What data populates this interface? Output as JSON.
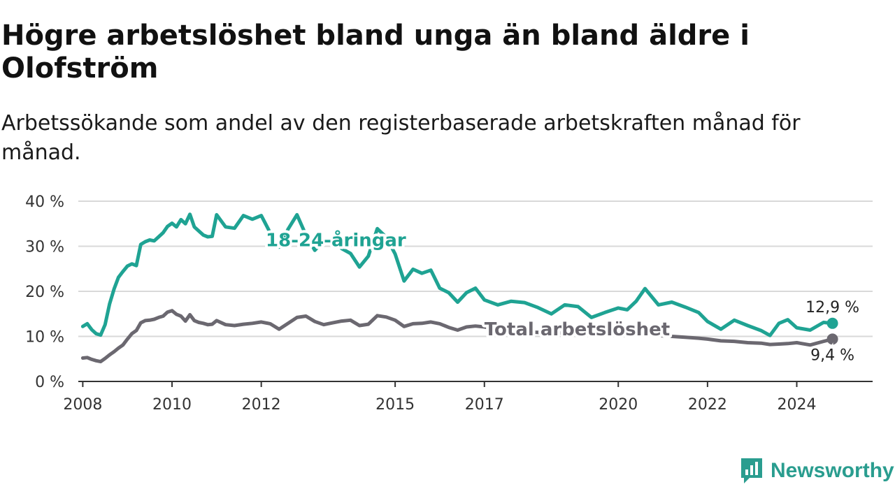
{
  "title": "Högre arbetslöshet bland unga än bland äldre i Olofström",
  "subtitle": "Arbetssökande som andel av den registerbaserade arbetskraften månad för månad.",
  "brand": "Newsworthy",
  "colors": {
    "young": "#1fa393",
    "total": "#6b6870",
    "grid": "#d9d9d9",
    "axis": "#333333"
  },
  "icons": {
    "logo": "newsworthy-logo-icon"
  },
  "chart_data": {
    "type": "line",
    "y_tick_labels": [
      "0 %",
      "10 %",
      "20 %",
      "30 %",
      "40 %"
    ],
    "x_tick_labels": [
      "2008",
      "2010",
      "2012",
      "2015",
      "2017",
      "2020",
      "2022",
      "2024"
    ],
    "x_ticks": [
      2008,
      2010,
      2012,
      2015,
      2017,
      2020,
      2022,
      2024
    ],
    "xlim": [
      2007.9,
      2025.7
    ],
    "ylim": [
      0,
      40
    ],
    "grid": true,
    "series": [
      {
        "name": "18-24-åringar",
        "color": "#1fa393",
        "end_label": "12,9 %",
        "x": [
          2008.0,
          2008.1,
          2008.2,
          2008.3,
          2008.4,
          2008.5,
          2008.6,
          2008.7,
          2008.8,
          2008.9,
          2009.0,
          2009.1,
          2009.2,
          2009.3,
          2009.4,
          2009.5,
          2009.6,
          2009.7,
          2009.8,
          2009.9,
          2010.0,
          2010.1,
          2010.2,
          2010.3,
          2010.4,
          2010.5,
          2010.6,
          2010.7,
          2010.8,
          2010.9,
          2011.0,
          2011.2,
          2011.4,
          2011.6,
          2011.8,
          2012.0,
          2012.2,
          2012.4,
          2012.6,
          2012.8,
          2013.0,
          2013.2,
          2013.4,
          2013.6,
          2013.8,
          2014.0,
          2014.2,
          2014.4,
          2014.6,
          2014.8,
          2015.0,
          2015.2,
          2015.4,
          2015.6,
          2015.8,
          2016.0,
          2016.2,
          2016.4,
          2016.6,
          2016.8,
          2017.0,
          2017.3,
          2017.6,
          2017.9,
          2018.2,
          2018.5,
          2018.8,
          2019.1,
          2019.4,
          2019.7,
          2020.0,
          2020.2,
          2020.4,
          2020.6,
          2020.9,
          2021.2,
          2021.5,
          2021.8,
          2022.0,
          2022.3,
          2022.6,
          2022.9,
          2023.2,
          2023.4,
          2023.6,
          2023.8,
          2024.0,
          2024.3,
          2024.6,
          2024.8
        ],
        "values": [
          12.2,
          12.8,
          11.5,
          10.6,
          10.3,
          12.6,
          17.2,
          20.5,
          23.1,
          24.4,
          25.6,
          26.1,
          25.7,
          30.4,
          31.0,
          31.4,
          31.2,
          32.1,
          33.0,
          34.4,
          35.1,
          34.3,
          35.9,
          35.0,
          37.1,
          34.3,
          33.4,
          32.5,
          32.1,
          32.2,
          37.0,
          34.3,
          34.0,
          36.8,
          36.0,
          36.8,
          33.0,
          29.8,
          33.8,
          37.0,
          32.5,
          29.1,
          31.2,
          31.6,
          29.5,
          28.4,
          25.4,
          27.8,
          33.9,
          32.0,
          28.3,
          22.3,
          24.9,
          24.0,
          24.7,
          20.7,
          19.7,
          17.6,
          19.7,
          20.7,
          18.1,
          17.0,
          17.8,
          17.5,
          16.4,
          15.0,
          17.0,
          16.6,
          14.2,
          15.3,
          16.3,
          15.9,
          17.8,
          20.6,
          17.0,
          17.6,
          16.5,
          15.3,
          13.3,
          11.6,
          13.6,
          12.4,
          11.3,
          10.2,
          12.9,
          13.7,
          11.9,
          11.4,
          13.1,
          12.9
        ]
      },
      {
        "name": "Total arbetslöshet",
        "color": "#6b6870",
        "end_label": "9,4 %",
        "x": [
          2008.0,
          2008.1,
          2008.2,
          2008.3,
          2008.4,
          2008.5,
          2008.6,
          2008.7,
          2008.8,
          2008.9,
          2009.0,
          2009.1,
          2009.2,
          2009.3,
          2009.4,
          2009.5,
          2009.6,
          2009.7,
          2009.8,
          2009.9,
          2010.0,
          2010.1,
          2010.2,
          2010.3,
          2010.4,
          2010.5,
          2010.6,
          2010.7,
          2010.8,
          2010.9,
          2011.0,
          2011.2,
          2011.4,
          2011.6,
          2011.8,
          2012.0,
          2012.2,
          2012.4,
          2012.6,
          2012.8,
          2013.0,
          2013.2,
          2013.4,
          2013.6,
          2013.8,
          2014.0,
          2014.2,
          2014.4,
          2014.6,
          2014.8,
          2015.0,
          2015.2,
          2015.4,
          2015.6,
          2015.8,
          2016.0,
          2016.2,
          2016.4,
          2016.6,
          2016.8,
          2017.0,
          2017.3,
          2017.6,
          2017.9,
          2018.2,
          2018.5,
          2018.8,
          2019.1,
          2019.4,
          2019.7,
          2020.0,
          2020.2,
          2020.4,
          2020.6,
          2020.9,
          2021.2,
          2021.5,
          2021.8,
          2022.0,
          2022.3,
          2022.6,
          2022.9,
          2023.2,
          2023.4,
          2023.6,
          2023.8,
          2024.0,
          2024.3,
          2024.6,
          2024.8
        ],
        "values": [
          5.2,
          5.3,
          4.9,
          4.6,
          4.4,
          5.1,
          5.9,
          6.6,
          7.4,
          8.1,
          9.4,
          10.6,
          11.3,
          13.0,
          13.5,
          13.6,
          13.8,
          14.2,
          14.5,
          15.4,
          15.7,
          14.9,
          14.5,
          13.4,
          14.8,
          13.5,
          13.1,
          12.9,
          12.6,
          12.7,
          13.5,
          12.6,
          12.4,
          12.7,
          12.9,
          13.2,
          12.8,
          11.6,
          12.9,
          14.2,
          14.5,
          13.3,
          12.6,
          13.0,
          13.4,
          13.6,
          12.4,
          12.7,
          14.6,
          14.3,
          13.6,
          12.2,
          12.8,
          12.9,
          13.2,
          12.8,
          12.0,
          11.4,
          12.1,
          12.3,
          12.1,
          11.5,
          11.3,
          11.0,
          10.9,
          10.6,
          10.8,
          10.6,
          10.3,
          10.4,
          10.3,
          10.2,
          10.5,
          10.8,
          10.2,
          10.0,
          9.8,
          9.6,
          9.4,
          9.0,
          8.9,
          8.6,
          8.5,
          8.2,
          8.3,
          8.4,
          8.6,
          8.1,
          8.9,
          9.4
        ]
      }
    ]
  }
}
